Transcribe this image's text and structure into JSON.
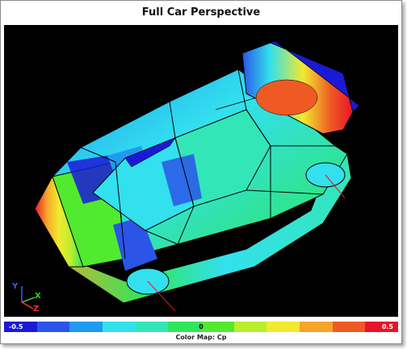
{
  "title": "Full Car Perspective",
  "viewport": {
    "background": "#000000",
    "triad": {
      "y_label": "Y",
      "x_label": "X",
      "z_label": "Z",
      "y_color": "#3b5bff",
      "x_color": "#33cc33",
      "z_color": "#ff3333"
    }
  },
  "colorbar": {
    "min_label": "-0.5",
    "mid_label": "0",
    "max_label": "0.5",
    "caption": "Color Map: Cp",
    "colors": [
      "#1a1ad6",
      "#2a55e6",
      "#1f9bf0",
      "#33e0ee",
      "#33e6b8",
      "#2ee65a",
      "#52ea2e",
      "#b8ee2e",
      "#f2ea2e",
      "#f5a52a",
      "#ef5a24",
      "#e8142a"
    ]
  }
}
